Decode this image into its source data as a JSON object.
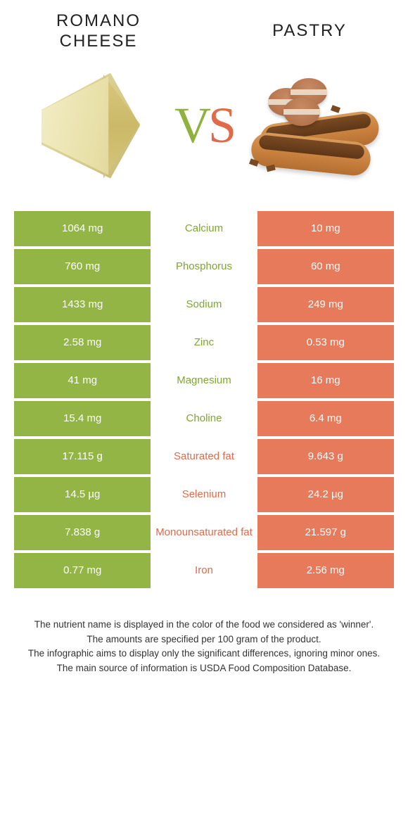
{
  "header": {
    "left_title_line1": "Romano",
    "left_title_line2": "cheese",
    "right_title": "Pastry"
  },
  "vs": {
    "v": "V",
    "s": "S"
  },
  "colors": {
    "green": "#92b546",
    "orange": "#e67a5a",
    "green_text": "#7ea632",
    "orange_text": "#e06a4a"
  },
  "rows": [
    {
      "left": "1064 mg",
      "label": "Calcium",
      "right": "10 mg",
      "winner": "left"
    },
    {
      "left": "760 mg",
      "label": "Phosphorus",
      "right": "60 mg",
      "winner": "left"
    },
    {
      "left": "1433 mg",
      "label": "Sodium",
      "right": "249 mg",
      "winner": "left"
    },
    {
      "left": "2.58 mg",
      "label": "Zinc",
      "right": "0.53 mg",
      "winner": "left"
    },
    {
      "left": "41 mg",
      "label": "Magnesium",
      "right": "16 mg",
      "winner": "left"
    },
    {
      "left": "15.4 mg",
      "label": "Choline",
      "right": "6.4 mg",
      "winner": "left"
    },
    {
      "left": "17.115 g",
      "label": "Saturated fat",
      "right": "9.643 g",
      "winner": "right"
    },
    {
      "left": "14.5 µg",
      "label": "Selenium",
      "right": "24.2 µg",
      "winner": "right"
    },
    {
      "left": "7.838 g",
      "label": "Monounsaturated fat",
      "right": "21.597 g",
      "winner": "right"
    },
    {
      "left": "0.77 mg",
      "label": "Iron",
      "right": "2.56 mg",
      "winner": "right"
    }
  ],
  "footnotes": [
    "The nutrient name is displayed in the color of the food we considered as 'winner'.",
    "The amounts are specified per 100 gram of the product.",
    "The infographic aims to display only the significant differences, ignoring minor ones.",
    "The main source of information is USDA Food Composition Database."
  ]
}
